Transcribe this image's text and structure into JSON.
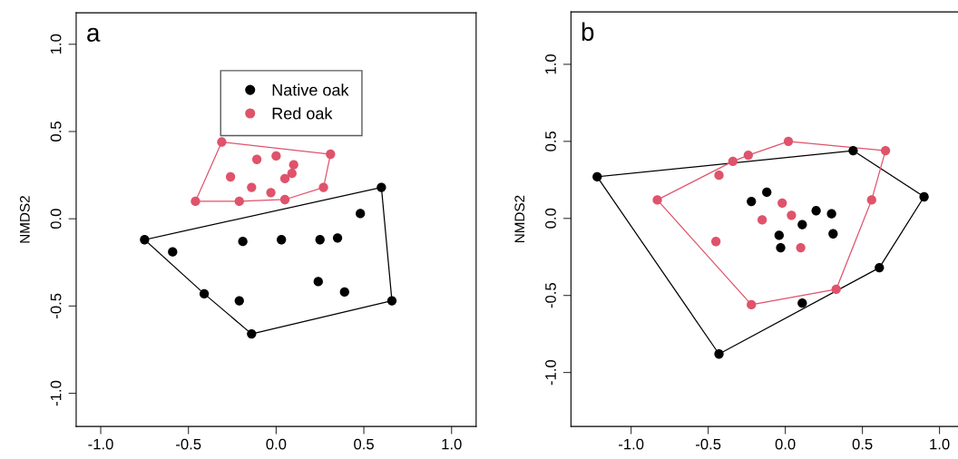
{
  "chart_data": [
    {
      "type": "scatter",
      "title": "a",
      "ylabel": "NMDS2",
      "xlim": [
        -1.14,
        1.14
      ],
      "ylim": [
        -1.19,
        1.18
      ],
      "xticks": [
        {
          "value": -1.0,
          "label": "-1.0"
        },
        {
          "value": -0.5,
          "label": "-0.5"
        },
        {
          "value": 0.0,
          "label": "0.0"
        },
        {
          "value": 0.5,
          "label": "0.5"
        },
        {
          "value": 1.0,
          "label": "1.0"
        }
      ],
      "yticks": [
        {
          "value": -1.0,
          "label": "-1.0"
        },
        {
          "value": -0.5,
          "label": "-0.5"
        },
        {
          "value": 0.0,
          "label": "0.0"
        },
        {
          "value": 0.5,
          "label": "0.5"
        },
        {
          "value": 1.0,
          "label": "1.0"
        }
      ],
      "grid": false,
      "legend": "top right",
      "marker": "circle",
      "series": [
        {
          "type": "line",
          "marker": "none",
          "color": "#000000",
          "x": [
            -0.75,
            0.6,
            0.66
          ],
          "values": [
            -0.12,
            0.18,
            -0.47
          ]
        },
        {
          "type": "line",
          "marker": "none",
          "color": "#000000",
          "x": [
            -0.75,
            -0.41,
            -0.14,
            0.66
          ],
          "values": [
            -0.12,
            -0.43,
            -0.66,
            -0.47
          ]
        },
        {
          "type": "line",
          "marker": "none",
          "color": "#df536b",
          "x": [
            -0.46,
            -0.31,
            0.31
          ],
          "values": [
            0.1,
            0.44,
            0.37
          ]
        },
        {
          "type": "line",
          "marker": "none",
          "color": "#df536b",
          "x": [
            -0.46,
            -0.21,
            0.05,
            0.27,
            0.31
          ],
          "values": [
            0.1,
            0.1,
            0.11,
            0.18,
            0.37
          ]
        },
        {
          "name": "Native oak",
          "color": "#000000",
          "x": [
            -0.75,
            0.6,
            0.66,
            -0.14,
            -0.41,
            -0.59,
            -0.19,
            0.03,
            0.25,
            0.35,
            0.48,
            0.24,
            0.39,
            -0.21
          ],
          "values": [
            -0.12,
            0.18,
            -0.47,
            -0.66,
            -0.43,
            -0.19,
            -0.13,
            -0.12,
            -0.12,
            -0.11,
            0.03,
            -0.36,
            -0.42,
            -0.47
          ]
        },
        {
          "name": "Red oak",
          "color": "#df536b",
          "x": [
            -0.31,
            0.31,
            0.27,
            0.05,
            -0.21,
            -0.46,
            -0.26,
            -0.11,
            0.0,
            0.1,
            0.09,
            0.05,
            -0.14,
            -0.03
          ],
          "values": [
            0.44,
            0.37,
            0.18,
            0.11,
            0.1,
            0.1,
            0.24,
            0.34,
            0.36,
            0.31,
            0.26,
            0.23,
            0.18,
            0.15
          ]
        }
      ]
    },
    {
      "type": "scatter",
      "title": "b",
      "ylabel": "NMDS2",
      "xlim": [
        -1.39,
        1.12
      ],
      "ylim": [
        -1.35,
        1.34
      ],
      "xticks": [
        {
          "value": -1.0,
          "label": "-1.0"
        },
        {
          "value": -0.5,
          "label": "-0.5"
        },
        {
          "value": 0.0,
          "label": "0.0"
        },
        {
          "value": 0.5,
          "label": "0.5"
        },
        {
          "value": 1.0,
          "label": "1.0"
        }
      ],
      "yticks": [
        {
          "value": -1.0,
          "label": "-1.0"
        },
        {
          "value": -0.5,
          "label": "-0.5"
        },
        {
          "value": 0.0,
          "label": "0.0"
        },
        {
          "value": 0.5,
          "label": "0.5"
        },
        {
          "value": 1.0,
          "label": "1.0"
        }
      ],
      "grid": false,
      "marker": "circle",
      "series": [
        {
          "type": "line",
          "marker": "none",
          "color": "#000000",
          "x": [
            -1.22,
            0.44,
            0.9
          ],
          "values": [
            0.27,
            0.44,
            0.14
          ]
        },
        {
          "type": "line",
          "marker": "none",
          "color": "#000000",
          "x": [
            -1.22,
            -0.43,
            0.61,
            0.9
          ],
          "values": [
            0.27,
            -0.88,
            -0.32,
            0.14
          ]
        },
        {
          "type": "line",
          "marker": "none",
          "color": "#df536b",
          "x": [
            -0.83,
            -0.34,
            -0.24,
            0.02,
            0.65
          ],
          "values": [
            0.12,
            0.37,
            0.41,
            0.5,
            0.44
          ]
        },
        {
          "type": "line",
          "marker": "none",
          "color": "#df536b",
          "x": [
            -0.83,
            -0.22,
            0.33,
            0.56,
            0.65
          ],
          "values": [
            0.12,
            -0.56,
            -0.46,
            0.12,
            0.44
          ]
        },
        {
          "color": "#000000",
          "x": [
            -1.22,
            0.44,
            0.9,
            0.61,
            -0.43,
            0.11,
            -0.22,
            -0.12,
            0.2,
            0.3,
            0.11,
            0.31,
            -0.04,
            -0.03
          ],
          "values": [
            0.27,
            0.44,
            0.14,
            -0.32,
            -0.88,
            -0.55,
            0.11,
            0.17,
            0.05,
            0.03,
            -0.04,
            -0.1,
            -0.11,
            -0.19
          ]
        },
        {
          "color": "#df536b",
          "x": [
            0.02,
            0.65,
            0.56,
            0.33,
            -0.22,
            -0.83,
            -0.34,
            -0.24,
            -0.43,
            -0.02,
            0.04,
            -0.15,
            -0.45,
            0.1
          ],
          "values": [
            0.5,
            0.44,
            0.12,
            -0.46,
            -0.56,
            0.12,
            0.37,
            0.41,
            0.28,
            0.1,
            0.02,
            -0.01,
            -0.15,
            -0.19
          ]
        }
      ]
    }
  ]
}
